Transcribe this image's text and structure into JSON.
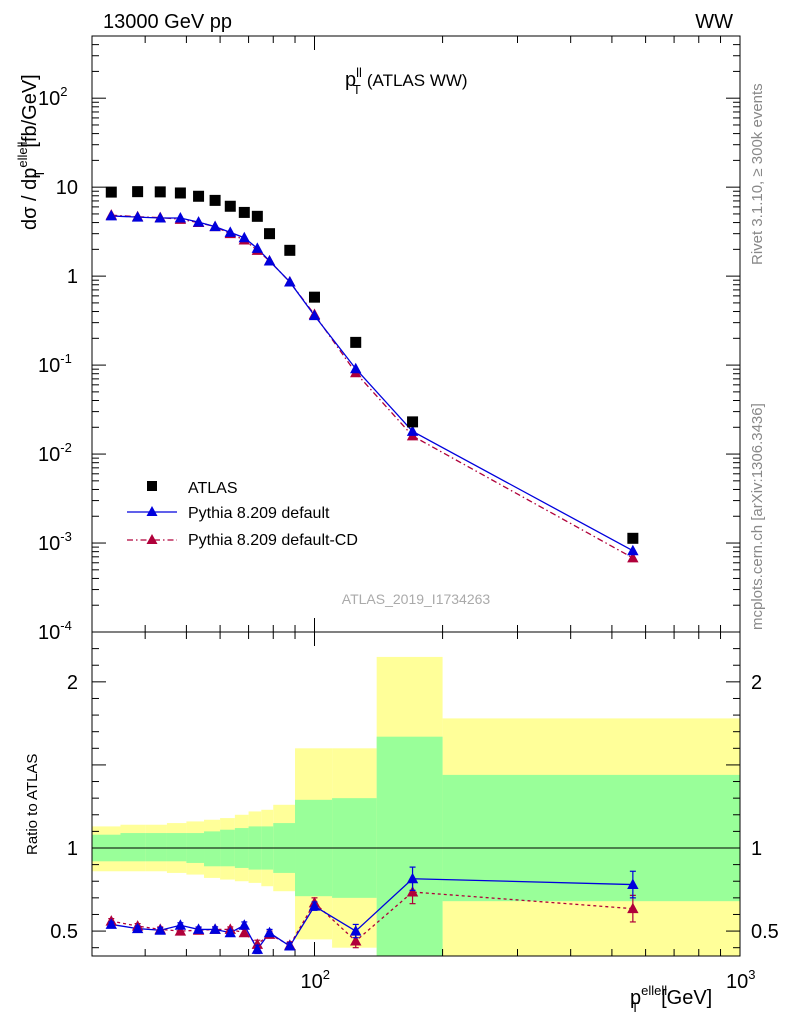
{
  "header": {
    "left": "13000 GeV pp",
    "right": "WW"
  },
  "main_title": {
    "base": "p",
    "sup": "ll",
    "sub": "T",
    "rest": "(ATLAS WW)"
  },
  "ylabel_main": "dσ / dp_T^{ellell} [fb/GeV]",
  "ylabel_ratio": "Ratio to ATLAS",
  "xlabel": "p_T^{ellell} [GeV]",
  "side_text": {
    "rivet": "Rivet 3.1.10, ≥ 300k events",
    "mcplots": "mcplots.cern.ch [arXiv:1306.3436]"
  },
  "analysis_ref": "ATLAS_2019_I1734263",
  "colors": {
    "data": "#000000",
    "default": "#0000dd",
    "cd": "#b0003a",
    "band_green": "#99ff99",
    "band_yellow": "#ffff99"
  },
  "chart_data": [
    {
      "type": "scatter",
      "panel": "main",
      "xscale": "log",
      "yscale": "log",
      "xlim": [
        30,
        1000
      ],
      "ylim": [
        0.0001,
        500
      ],
      "x_ticks": [
        "10^2",
        "10^3"
      ],
      "y_ticks": [
        "10^-4",
        "10^-3",
        "10^-2",
        "10^-1",
        "1",
        "10",
        "10^2"
      ],
      "legend_position": "bottom-left",
      "x": [
        33.3,
        38.4,
        43.4,
        48.4,
        53.4,
        58.4,
        63.4,
        68.4,
        73.4,
        78.4,
        87.5,
        100,
        125,
        170,
        560
      ],
      "series": [
        {
          "name": "ATLAS",
          "marker": "square",
          "values": [
            8.8,
            8.9,
            8.85,
            8.6,
            7.9,
            7.1,
            6.1,
            5.2,
            4.7,
            3.0,
            1.95,
            0.58,
            0.18,
            0.023,
            0.00113
          ]
        },
        {
          "name": "Pythia 8.209 default",
          "marker": "triangle",
          "line": "solid",
          "values": [
            4.75,
            4.6,
            4.5,
            4.5,
            4.05,
            3.6,
            3.1,
            2.7,
            2.05,
            1.48,
            0.86,
            0.36,
            0.091,
            0.018,
            0.00082
          ]
        },
        {
          "name": "Pythia 8.209 default-CD",
          "marker": "triangle",
          "line": "dashdot",
          "values": [
            4.85,
            4.65,
            4.55,
            4.35,
            4.0,
            3.6,
            3.0,
            2.55,
            1.95,
            1.48,
            0.86,
            0.37,
            0.082,
            0.016,
            0.00068
          ]
        }
      ]
    },
    {
      "type": "line",
      "panel": "ratio",
      "xscale": "log",
      "xlim": [
        30,
        1000
      ],
      "ylim": [
        0.35,
        2.3
      ],
      "y_ticks": [
        0.5,
        1,
        2
      ],
      "reference_line": 1,
      "x": [
        33.3,
        38.4,
        43.4,
        48.4,
        53.4,
        58.4,
        63.4,
        68.4,
        73.4,
        78.4,
        87.5,
        100,
        125,
        170,
        560
      ],
      "series": [
        {
          "name": "Pythia 8.209 default",
          "values": [
            0.54,
            0.515,
            0.505,
            0.535,
            0.51,
            0.51,
            0.49,
            0.535,
            0.39,
            0.49,
            0.41,
            0.65,
            0.5,
            0.815,
            0.78
          ],
          "errors": [
            0.015,
            0.015,
            0.015,
            0.015,
            0.015,
            0.015,
            0.015,
            0.02,
            0.025,
            0.02,
            0.02,
            0.025,
            0.04,
            0.07,
            0.08
          ]
        },
        {
          "name": "Pythia 8.209 default-CD",
          "values": [
            0.56,
            0.53,
            0.51,
            0.5,
            0.505,
            0.51,
            0.51,
            0.49,
            0.42,
            0.48,
            0.415,
            0.67,
            0.44,
            0.735,
            0.635
          ],
          "errors": [
            0.015,
            0.015,
            0.015,
            0.015,
            0.015,
            0.015,
            0.015,
            0.02,
            0.025,
            0.02,
            0.02,
            0.03,
            0.04,
            0.07,
            0.08
          ]
        }
      ],
      "uncertainty_bands": {
        "bin_edges": [
          30,
          35,
          40,
          45,
          50,
          55,
          60,
          65,
          70,
          75,
          80,
          90,
          110,
          140,
          200,
          1000
        ],
        "green_lo": [
          0.92,
          0.92,
          0.92,
          0.92,
          0.91,
          0.89,
          0.89,
          0.88,
          0.87,
          0.87,
          0.85,
          0.71,
          0.7,
          0.3,
          0.68
        ],
        "green_hi": [
          1.08,
          1.09,
          1.09,
          1.09,
          1.09,
          1.1,
          1.11,
          1.12,
          1.13,
          1.13,
          1.15,
          1.29,
          1.3,
          1.67,
          1.44
        ],
        "yellow_lo": [
          0.86,
          0.86,
          0.86,
          0.85,
          0.84,
          0.82,
          0.81,
          0.8,
          0.79,
          0.77,
          0.74,
          0.45,
          0.4,
          0.3,
          0.3
        ],
        "yellow_hi": [
          1.13,
          1.14,
          1.14,
          1.15,
          1.16,
          1.17,
          1.18,
          1.2,
          1.22,
          1.23,
          1.26,
          1.6,
          1.6,
          2.15,
          1.78
        ]
      }
    }
  ]
}
